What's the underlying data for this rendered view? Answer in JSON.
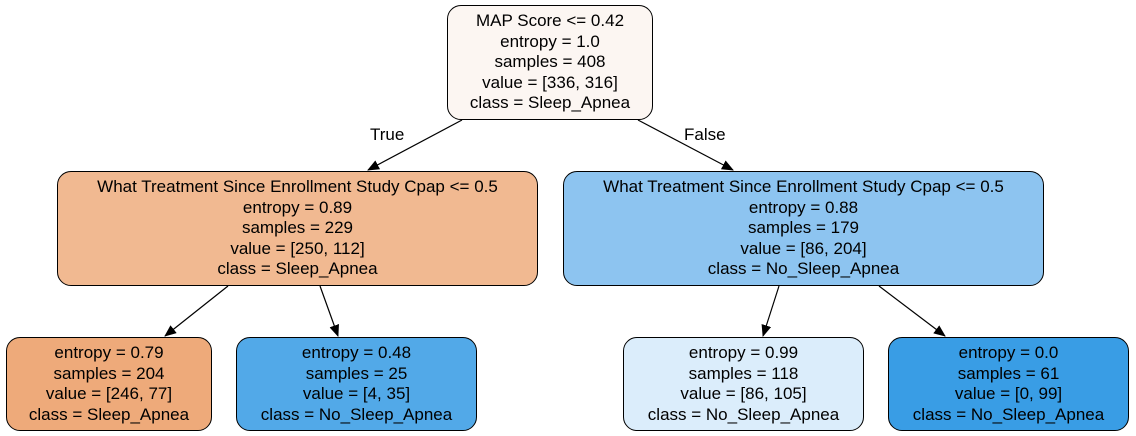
{
  "colors": {
    "root": "#fcf6f2",
    "left_internal": "#f1b991",
    "right_internal": "#8dc4f0",
    "leaf_ll": "#eeaa7a",
    "leaf_lr": "#52a9e8",
    "leaf_rl": "#dbedfb",
    "leaf_rr": "#399de5",
    "edge": "#000000"
  },
  "edge_labels": {
    "true_label": "True",
    "false_label": "False"
  },
  "nodes": {
    "root": {
      "condition": "MAP Score <= 0.42",
      "entropy": "entropy = 1.0",
      "samples": "samples = 408",
      "value": "value = [336, 316]",
      "class": "class = Sleep_Apnea"
    },
    "left": {
      "condition": "What Treatment Since Enrollment Study Cpap <= 0.5",
      "entropy": "entropy = 0.89",
      "samples": "samples = 229",
      "value": "value = [250, 112]",
      "class": "class = Sleep_Apnea"
    },
    "right": {
      "condition": "What Treatment Since Enrollment Study Cpap <= 0.5",
      "entropy": "entropy = 0.88",
      "samples": "samples = 179",
      "value": "value = [86, 204]",
      "class": "class = No_Sleep_Apnea"
    },
    "left_left": {
      "entropy": "entropy = 0.79",
      "samples": "samples = 204",
      "value": "value = [246, 77]",
      "class": "class = Sleep_Apnea"
    },
    "left_right": {
      "entropy": "entropy = 0.48",
      "samples": "samples = 25",
      "value": "value = [4, 35]",
      "class": "class = No_Sleep_Apnea"
    },
    "right_left": {
      "entropy": "entropy = 0.99",
      "samples": "samples = 118",
      "value": "value = [86, 105]",
      "class": "class = No_Sleep_Apnea"
    },
    "right_right": {
      "entropy": "entropy = 0.0",
      "samples": "samples = 61",
      "value": "value = [0, 99]",
      "class": "class = No_Sleep_Apnea"
    }
  }
}
